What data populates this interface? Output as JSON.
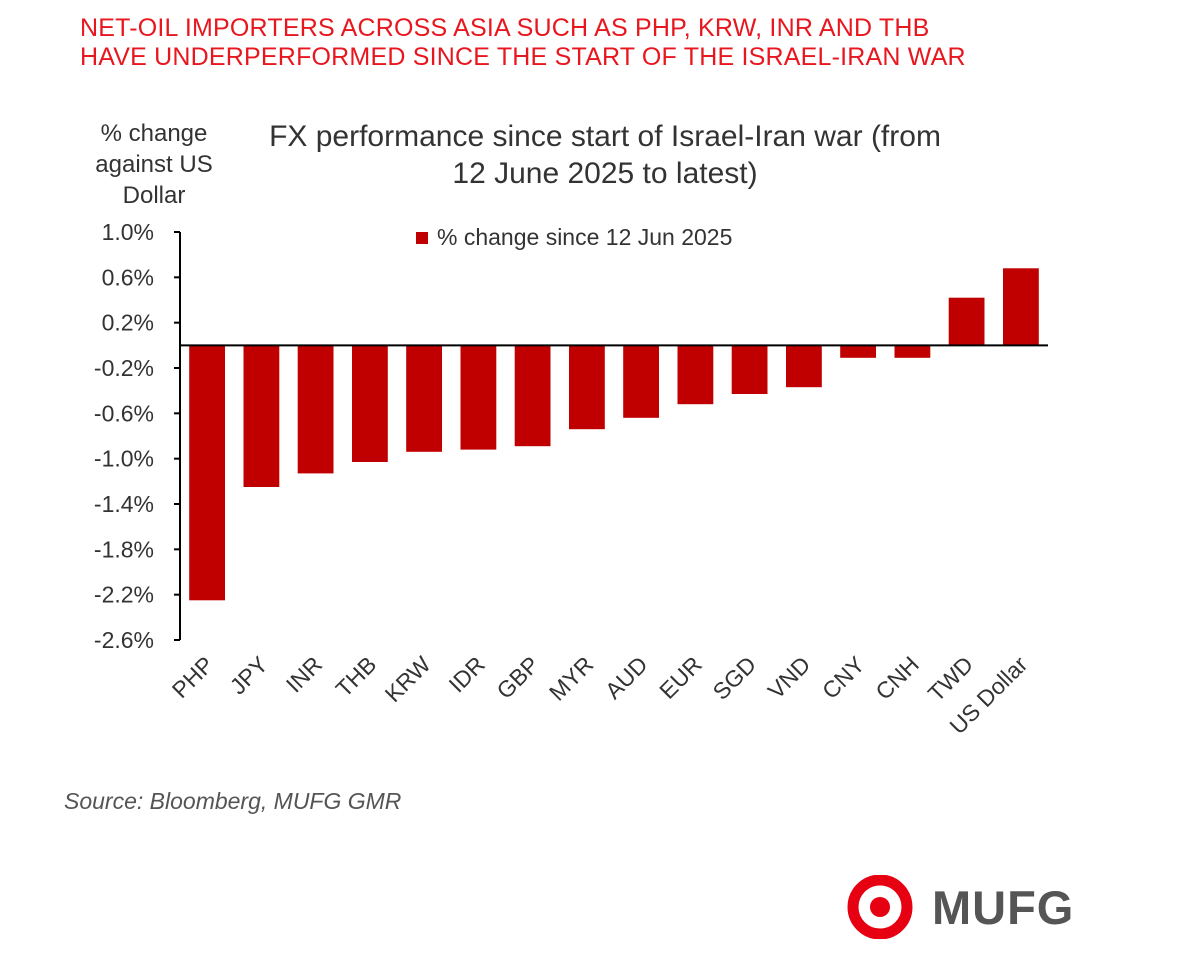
{
  "headline": {
    "line1": "NET-OIL IMPORTERS ACROSS ASIA SUCH AS PHP, KRW, INR AND THB",
    "line2": "HAVE UNDERPERFORMED SINCE THE START OF THE ISRAEL-IRAN WAR"
  },
  "source": "Source: Bloomberg, MUFG GMR",
  "logo": {
    "text": "MUFG",
    "icon": "mufg-circle-logo",
    "color": "#e60012"
  },
  "colors": {
    "headline": "#e8161e",
    "bar": "#c00000",
    "axis": "#000000"
  },
  "chart_data": {
    "type": "bar",
    "title_line1": "FX performance since start of Israel-Iran war (from",
    "title_line2": "12 June 2025 to latest)",
    "ylabel_line1": "% change",
    "ylabel_line2": "against US",
    "ylabel_line3": "Dollar",
    "xlabel": "",
    "ylim": [
      -2.6,
      1.0
    ],
    "yticks": [
      1.0,
      0.6,
      0.2,
      -0.2,
      -0.6,
      -1.0,
      -1.4,
      -1.8,
      -2.2,
      -2.6
    ],
    "ytick_labels": [
      "1.0%",
      "0.6%",
      "0.2%",
      "-0.2%",
      "-0.6%",
      "-1.0%",
      "-1.4%",
      "-1.8%",
      "-2.2%",
      "-2.6%"
    ],
    "categories": [
      "PHP",
      "JPY",
      "INR",
      "THB",
      "KRW",
      "IDR",
      "GBP",
      "MYR",
      "AUD",
      "EUR",
      "SGD",
      "VND",
      "CNY",
      "CNH",
      "TWD",
      "US Dollar"
    ],
    "series": [
      {
        "name": "% change since 12 Jun 2025",
        "values": [
          -2.25,
          -1.25,
          -1.13,
          -1.03,
          -0.94,
          -0.92,
          -0.89,
          -0.74,
          -0.64,
          -0.52,
          -0.43,
          -0.37,
          -0.11,
          -0.11,
          0.42,
          0.68
        ]
      }
    ],
    "grid": false,
    "legend": "top-center"
  }
}
